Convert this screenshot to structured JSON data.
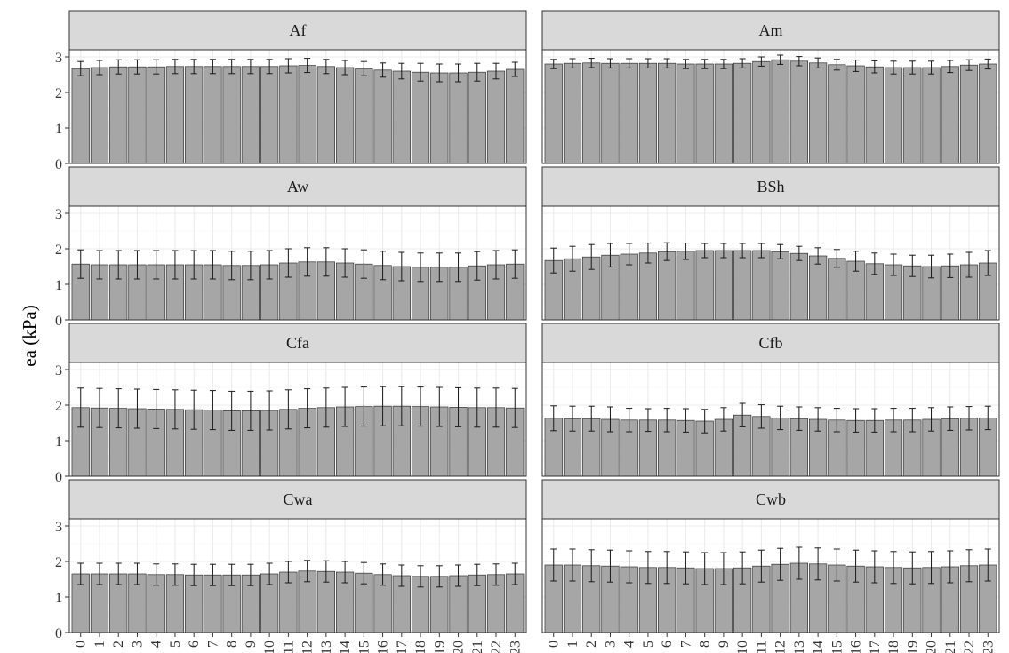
{
  "chart_data": {
    "type": "bar",
    "ylabel": "ea (kPa)",
    "xlabel": "",
    "ylim": [
      0,
      3.2
    ],
    "yticks": [
      0,
      1,
      2,
      3
    ],
    "categories": [
      "0",
      "1",
      "2",
      "3",
      "4",
      "5",
      "6",
      "7",
      "8",
      "9",
      "10",
      "11",
      "12",
      "13",
      "14",
      "15",
      "16",
      "17",
      "18",
      "19",
      "20",
      "21",
      "22",
      "23"
    ],
    "grid": true,
    "panels": [
      {
        "name": "Af",
        "values": [
          2.67,
          2.7,
          2.72,
          2.72,
          2.72,
          2.73,
          2.73,
          2.73,
          2.73,
          2.73,
          2.73,
          2.75,
          2.76,
          2.73,
          2.7,
          2.67,
          2.63,
          2.6,
          2.57,
          2.55,
          2.55,
          2.57,
          2.6,
          2.65
        ],
        "errors": [
          0.2,
          0.2,
          0.2,
          0.2,
          0.2,
          0.2,
          0.2,
          0.2,
          0.2,
          0.2,
          0.2,
          0.2,
          0.2,
          0.2,
          0.2,
          0.2,
          0.2,
          0.22,
          0.25,
          0.25,
          0.25,
          0.25,
          0.22,
          0.2
        ]
      },
      {
        "name": "Am",
        "values": [
          2.8,
          2.82,
          2.83,
          2.82,
          2.82,
          2.82,
          2.82,
          2.8,
          2.8,
          2.8,
          2.82,
          2.87,
          2.92,
          2.88,
          2.83,
          2.78,
          2.75,
          2.72,
          2.7,
          2.7,
          2.7,
          2.73,
          2.77,
          2.8
        ],
        "errors": [
          0.13,
          0.13,
          0.13,
          0.13,
          0.13,
          0.13,
          0.13,
          0.13,
          0.13,
          0.13,
          0.13,
          0.13,
          0.13,
          0.13,
          0.14,
          0.15,
          0.16,
          0.17,
          0.18,
          0.18,
          0.18,
          0.17,
          0.15,
          0.14
        ]
      },
      {
        "name": "Aw",
        "values": [
          1.57,
          1.55,
          1.55,
          1.55,
          1.55,
          1.55,
          1.55,
          1.55,
          1.53,
          1.53,
          1.55,
          1.6,
          1.63,
          1.63,
          1.6,
          1.57,
          1.53,
          1.5,
          1.48,
          1.48,
          1.48,
          1.52,
          1.55,
          1.57
        ],
        "errors": [
          0.4,
          0.4,
          0.4,
          0.4,
          0.4,
          0.4,
          0.4,
          0.4,
          0.4,
          0.4,
          0.4,
          0.4,
          0.4,
          0.4,
          0.4,
          0.4,
          0.4,
          0.4,
          0.4,
          0.4,
          0.4,
          0.4,
          0.4,
          0.4
        ]
      },
      {
        "name": "BSh",
        "values": [
          1.67,
          1.72,
          1.77,
          1.82,
          1.85,
          1.88,
          1.92,
          1.93,
          1.95,
          1.95,
          1.95,
          1.95,
          1.92,
          1.87,
          1.8,
          1.73,
          1.65,
          1.58,
          1.55,
          1.52,
          1.5,
          1.52,
          1.55,
          1.6
        ],
        "errors": [
          0.35,
          0.35,
          0.35,
          0.33,
          0.3,
          0.28,
          0.25,
          0.23,
          0.2,
          0.2,
          0.2,
          0.2,
          0.2,
          0.2,
          0.23,
          0.25,
          0.28,
          0.3,
          0.3,
          0.3,
          0.32,
          0.33,
          0.35,
          0.35
        ]
      },
      {
        "name": "Cfa",
        "values": [
          1.93,
          1.92,
          1.91,
          1.9,
          1.89,
          1.88,
          1.87,
          1.86,
          1.84,
          1.84,
          1.85,
          1.88,
          1.91,
          1.93,
          1.95,
          1.96,
          1.97,
          1.97,
          1.96,
          1.95,
          1.94,
          1.93,
          1.93,
          1.92
        ],
        "errors": [
          0.55,
          0.55,
          0.55,
          0.55,
          0.55,
          0.55,
          0.55,
          0.55,
          0.55,
          0.55,
          0.55,
          0.55,
          0.55,
          0.55,
          0.55,
          0.55,
          0.55,
          0.55,
          0.55,
          0.55,
          0.55,
          0.55,
          0.55,
          0.55
        ]
      },
      {
        "name": "Cfb",
        "values": [
          1.63,
          1.62,
          1.62,
          1.6,
          1.58,
          1.58,
          1.58,
          1.57,
          1.55,
          1.6,
          1.72,
          1.68,
          1.64,
          1.62,
          1.6,
          1.58,
          1.57,
          1.57,
          1.58,
          1.58,
          1.6,
          1.62,
          1.63,
          1.64
        ],
        "errors": [
          0.35,
          0.35,
          0.35,
          0.35,
          0.33,
          0.32,
          0.33,
          0.33,
          0.33,
          0.33,
          0.33,
          0.33,
          0.33,
          0.33,
          0.33,
          0.33,
          0.33,
          0.33,
          0.33,
          0.33,
          0.33,
          0.33,
          0.33,
          0.33
        ]
      },
      {
        "name": "Cwa",
        "values": [
          1.65,
          1.65,
          1.65,
          1.65,
          1.63,
          1.63,
          1.62,
          1.62,
          1.62,
          1.62,
          1.65,
          1.7,
          1.73,
          1.72,
          1.7,
          1.67,
          1.63,
          1.6,
          1.58,
          1.58,
          1.6,
          1.62,
          1.63,
          1.65
        ],
        "errors": [
          0.3,
          0.3,
          0.3,
          0.3,
          0.3,
          0.3,
          0.3,
          0.3,
          0.3,
          0.3,
          0.3,
          0.3,
          0.3,
          0.3,
          0.3,
          0.3,
          0.3,
          0.3,
          0.3,
          0.3,
          0.3,
          0.3,
          0.3,
          0.3
        ]
      },
      {
        "name": "Cwb",
        "values": [
          1.9,
          1.9,
          1.88,
          1.87,
          1.85,
          1.83,
          1.83,
          1.82,
          1.8,
          1.8,
          1.82,
          1.87,
          1.92,
          1.95,
          1.93,
          1.9,
          1.87,
          1.85,
          1.83,
          1.82,
          1.83,
          1.85,
          1.88,
          1.9
        ],
        "errors": [
          0.45,
          0.45,
          0.45,
          0.45,
          0.45,
          0.45,
          0.45,
          0.45,
          0.45,
          0.45,
          0.45,
          0.45,
          0.45,
          0.45,
          0.45,
          0.45,
          0.45,
          0.45,
          0.45,
          0.45,
          0.45,
          0.45,
          0.45,
          0.45
        ]
      }
    ]
  }
}
